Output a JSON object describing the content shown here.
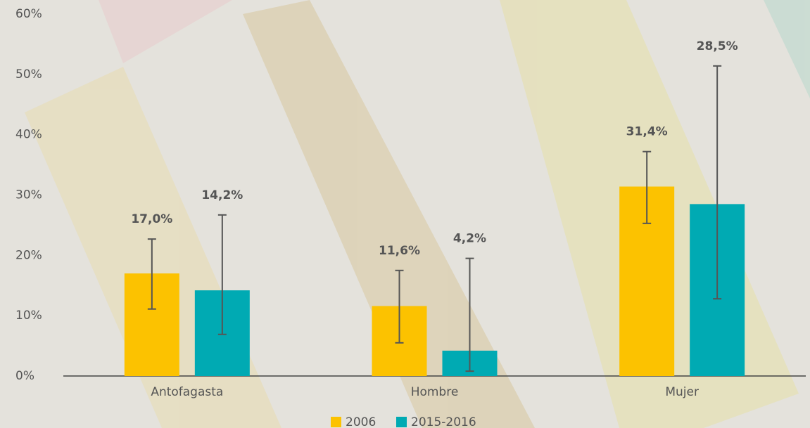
{
  "chart_data": {
    "type": "bar",
    "categories": [
      "Antofagasta",
      "Hombre",
      "Mujer"
    ],
    "series": [
      {
        "name": "2006",
        "color": "#fcc200",
        "values": [
          17.0,
          11.6,
          31.4
        ],
        "value_labels": [
          "17,0%",
          "11,6%",
          "31,4%"
        ],
        "lower": [
          11.1,
          5.5,
          25.3
        ],
        "upper": [
          22.7,
          17.5,
          37.2
        ]
      },
      {
        "name": "2015-2016",
        "color": "#00aab3",
        "values": [
          14.2,
          4.2,
          28.5
        ],
        "value_labels": [
          "14,2%",
          "4,2%",
          "28,5%"
        ],
        "lower": [
          6.9,
          0.8,
          12.8
        ],
        "upper": [
          26.7,
          19.5,
          51.4
        ]
      }
    ],
    "ylim": [
      0,
      60
    ],
    "yticks": [
      {
        "value": 0,
        "label": "0%"
      },
      {
        "value": 10,
        "label": "10%"
      },
      {
        "value": 20,
        "label": "20%"
      },
      {
        "value": 30,
        "label": "30%"
      },
      {
        "value": 40,
        "label": "40%"
      },
      {
        "value": 50,
        "label": "50%"
      },
      {
        "value": 60,
        "label": "60%"
      }
    ]
  }
}
